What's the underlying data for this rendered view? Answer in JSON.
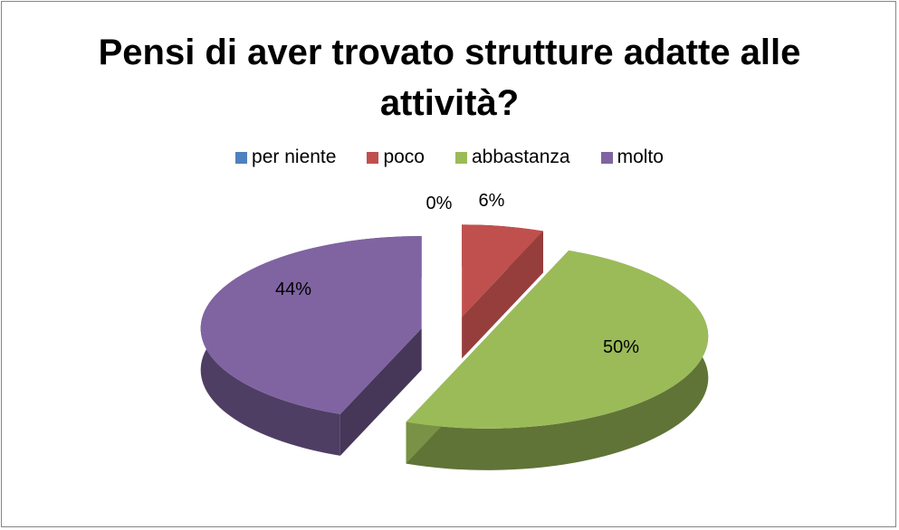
{
  "chart_data": {
    "type": "pie",
    "title": "Pensi di aver trovato strutture adatte alle attività?",
    "title_lines": [
      "Pensi di aver trovato strutture adatte alle",
      "attività?"
    ],
    "legend_placement": "top",
    "categories": [
      "per niente",
      "poco",
      "abbastanza",
      "molto"
    ],
    "values": [
      0,
      6,
      50,
      44
    ],
    "data_labels": [
      "0%",
      "6%",
      "50%",
      "44%"
    ],
    "colors": [
      "#4F81BD",
      "#C0504D",
      "#9BBB59",
      "#8064A2"
    ],
    "exploded": true,
    "style": "3d"
  }
}
